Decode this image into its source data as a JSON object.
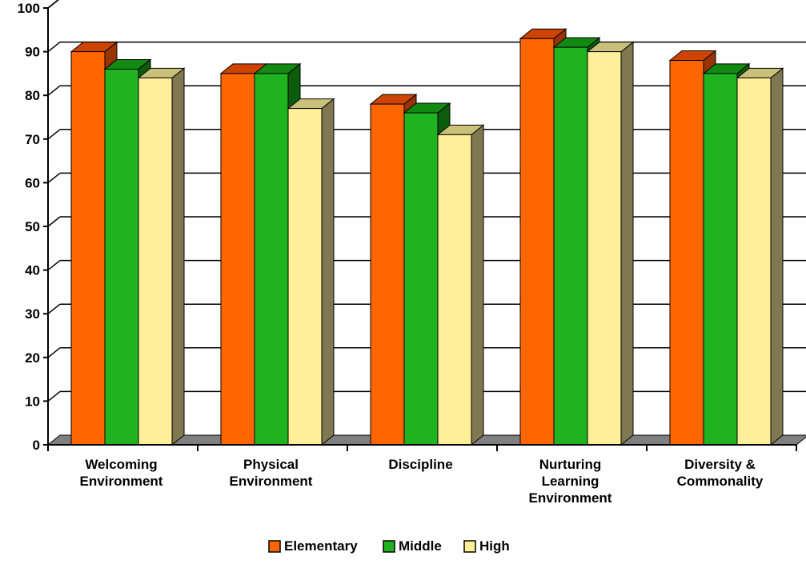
{
  "chart_data": {
    "type": "bar",
    "categories": [
      [
        "Welcoming",
        "Environment"
      ],
      [
        "Physical",
        "Environment"
      ],
      [
        "Discipline"
      ],
      [
        "Nurturing",
        "Learning",
        "Environment"
      ],
      [
        "Diversity &",
        "Commonality"
      ]
    ],
    "series": [
      {
        "name": "Elementary",
        "values": [
          90,
          85,
          78,
          93,
          88
        ]
      },
      {
        "name": "Middle",
        "values": [
          86,
          85,
          76,
          91,
          85
        ]
      },
      {
        "name": "High",
        "values": [
          84,
          77,
          71,
          90,
          84
        ]
      }
    ],
    "ylim": [
      0,
      100
    ],
    "yticks": [
      "0",
      "10",
      "20",
      "30",
      "40",
      "50",
      "60",
      "70",
      "80",
      "90",
      "100"
    ],
    "grid": true,
    "legend_position": "bottom",
    "colors": {
      "Elementary": {
        "front": "#ff6600",
        "side": "#993300",
        "top": "#cc4400"
      },
      "Middle": {
        "front": "#1fb31f",
        "side": "#0b5c0b",
        "top": "#128a12"
      },
      "High": {
        "front": "#ffef99",
        "side": "#7f7850",
        "top": "#c9c07a"
      },
      "floor": "#808080",
      "wall": "#808080"
    }
  }
}
